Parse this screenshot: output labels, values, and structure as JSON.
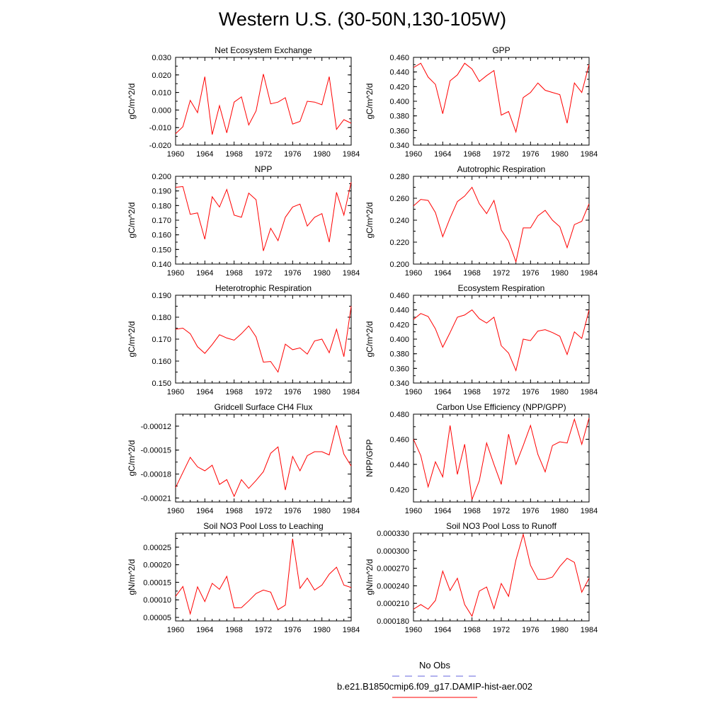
{
  "figure": {
    "title": "Western U.S. (30-50N,130-105W)",
    "legend": {
      "obs_label": "No Obs",
      "obs_color": "#6666dd",
      "model_label": "b.e21.B1850cmip6.f09_g17.DAMIP-hist-aer.002",
      "model_color": "#ff0000"
    },
    "line_color": "#ff0000"
  },
  "chart_data": [
    {
      "type": "line",
      "title": "Net Ecosystem Exchange",
      "ylabel": "gC/m^2/d",
      "xlim": [
        1960,
        1984
      ],
      "xticks": [
        "1960",
        "1964",
        "1968",
        "1972",
        "1976",
        "1980",
        "1984"
      ],
      "ylim": [
        -0.02,
        0.03
      ],
      "yticks": [
        "-0.020",
        "-0.010",
        "0.000",
        "0.010",
        "0.020",
        "0.030"
      ],
      "ytick_values": [
        -0.02,
        -0.01,
        0.0,
        0.01,
        0.02,
        0.03
      ],
      "series": [
        {
          "x": [
            1960,
            1961,
            1962,
            1963,
            1964,
            1965,
            1966,
            1967,
            1968,
            1969,
            1970,
            1971,
            1972,
            1973,
            1974,
            1975,
            1976,
            1977,
            1978,
            1979,
            1980,
            1981,
            1982,
            1983,
            1984
          ],
          "values": [
            -0.0135,
            -0.0095,
            0.0055,
            -0.0015,
            0.019,
            -0.014,
            0.0025,
            -0.013,
            0.0045,
            0.0075,
            -0.0085,
            -0.0005,
            0.0205,
            0.0035,
            0.0045,
            0.007,
            -0.008,
            -0.0065,
            0.005,
            0.0045,
            0.003,
            0.019,
            -0.011,
            -0.0055,
            -0.0075
          ]
        }
      ]
    },
    {
      "type": "line",
      "title": "GPP",
      "ylabel": "gC/m^2/d",
      "xlim": [
        1960,
        1984
      ],
      "xticks": [
        "1960",
        "1964",
        "1968",
        "1972",
        "1976",
        "1980",
        "1984"
      ],
      "ylim": [
        0.34,
        0.46
      ],
      "yticks": [
        "0.340",
        "0.360",
        "0.380",
        "0.400",
        "0.420",
        "0.440",
        "0.460"
      ],
      "ytick_values": [
        0.34,
        0.36,
        0.38,
        0.4,
        0.42,
        0.44,
        0.46
      ],
      "series": [
        {
          "x": [
            1960,
            1961,
            1962,
            1963,
            1964,
            1965,
            1966,
            1967,
            1968,
            1969,
            1970,
            1971,
            1972,
            1973,
            1974,
            1975,
            1976,
            1977,
            1978,
            1979,
            1980,
            1981,
            1982,
            1983,
            1984
          ],
          "values": [
            0.446,
            0.452,
            0.433,
            0.423,
            0.383,
            0.428,
            0.436,
            0.452,
            0.444,
            0.427,
            0.435,
            0.442,
            0.381,
            0.386,
            0.358,
            0.405,
            0.412,
            0.425,
            0.415,
            0.412,
            0.409,
            0.37,
            0.425,
            0.412,
            0.45
          ]
        }
      ]
    },
    {
      "type": "line",
      "title": "NPP",
      "ylabel": "gC/m^2/d",
      "xlim": [
        1960,
        1984
      ],
      "xticks": [
        "1960",
        "1964",
        "1968",
        "1972",
        "1976",
        "1980",
        "1984"
      ],
      "ylim": [
        0.14,
        0.2
      ],
      "yticks": [
        "0.140",
        "0.150",
        "0.160",
        "0.170",
        "0.180",
        "0.190",
        "0.200"
      ],
      "ytick_values": [
        0.14,
        0.15,
        0.16,
        0.17,
        0.18,
        0.19,
        0.2
      ],
      "series": [
        {
          "x": [
            1960,
            1961,
            1962,
            1963,
            1964,
            1965,
            1966,
            1967,
            1968,
            1969,
            1970,
            1971,
            1972,
            1973,
            1974,
            1975,
            1976,
            1977,
            1978,
            1979,
            1980,
            1981,
            1982,
            1983,
            1984
          ],
          "values": [
            0.1925,
            0.193,
            0.174,
            0.175,
            0.157,
            0.186,
            0.179,
            0.191,
            0.1735,
            0.172,
            0.1885,
            0.184,
            0.149,
            0.1645,
            0.156,
            0.172,
            0.179,
            0.181,
            0.166,
            0.172,
            0.1745,
            0.155,
            0.189,
            0.1735,
            0.196
          ]
        }
      ]
    },
    {
      "type": "line",
      "title": "Autotrophic Respiration",
      "ylabel": "gC/m^2/d",
      "xlim": [
        1960,
        1984
      ],
      "xticks": [
        "1960",
        "1964",
        "1968",
        "1972",
        "1976",
        "1980",
        "1984"
      ],
      "ylim": [
        0.2,
        0.28
      ],
      "yticks": [
        "0.200",
        "0.220",
        "0.240",
        "0.260",
        "0.280"
      ],
      "ytick_values": [
        0.2,
        0.22,
        0.24,
        0.26,
        0.28
      ],
      "series": [
        {
          "x": [
            1960,
            1961,
            1962,
            1963,
            1964,
            1965,
            1966,
            1967,
            1968,
            1969,
            1970,
            1971,
            1972,
            1973,
            1974,
            1975,
            1976,
            1977,
            1978,
            1979,
            1980,
            1981,
            1982,
            1983,
            1984
          ],
          "values": [
            0.253,
            0.259,
            0.258,
            0.247,
            0.225,
            0.242,
            0.257,
            0.262,
            0.27,
            0.255,
            0.246,
            0.258,
            0.231,
            0.221,
            0.202,
            0.233,
            0.233,
            0.244,
            0.249,
            0.24,
            0.234,
            0.215,
            0.236,
            0.239,
            0.255
          ]
        }
      ]
    },
    {
      "type": "line",
      "title": "Heterotrophic Respiration",
      "ylabel": "gC/m^2/d",
      "xlim": [
        1960,
        1984
      ],
      "xticks": [
        "1960",
        "1964",
        "1968",
        "1972",
        "1976",
        "1980",
        "1984"
      ],
      "ylim": [
        0.15,
        0.19
      ],
      "yticks": [
        "0.150",
        "0.160",
        "0.170",
        "0.180",
        "0.190"
      ],
      "ytick_values": [
        0.15,
        0.16,
        0.17,
        0.18,
        0.19
      ],
      "series": [
        {
          "x": [
            1960,
            1961,
            1962,
            1963,
            1964,
            1965,
            1966,
            1967,
            1968,
            1969,
            1970,
            1971,
            1972,
            1973,
            1974,
            1975,
            1976,
            1977,
            1978,
            1979,
            1980,
            1981,
            1982,
            1983,
            1984
          ],
          "values": [
            0.1745,
            0.175,
            0.1725,
            0.1665,
            0.1635,
            0.1675,
            0.172,
            0.1705,
            0.1695,
            0.1725,
            0.176,
            0.171,
            0.1595,
            0.1598,
            0.155,
            0.1677,
            0.1652,
            0.166,
            0.1632,
            0.1692,
            0.17,
            0.1638,
            0.1745,
            0.162,
            0.185
          ]
        }
      ]
    },
    {
      "type": "line",
      "title": "Ecosystem Respiration",
      "ylabel": "gC/m^2/d",
      "xlim": [
        1960,
        1984
      ],
      "xticks": [
        "1960",
        "1964",
        "1968",
        "1972",
        "1976",
        "1980",
        "1984"
      ],
      "ylim": [
        0.34,
        0.46
      ],
      "yticks": [
        "0.340",
        "0.360",
        "0.380",
        "0.400",
        "0.420",
        "0.440",
        "0.460"
      ],
      "ytick_values": [
        0.34,
        0.36,
        0.38,
        0.4,
        0.42,
        0.44,
        0.46
      ],
      "series": [
        {
          "x": [
            1960,
            1961,
            1962,
            1963,
            1964,
            1965,
            1966,
            1967,
            1968,
            1969,
            1970,
            1971,
            1972,
            1973,
            1974,
            1975,
            1976,
            1977,
            1978,
            1979,
            1980,
            1981,
            1982,
            1983,
            1984
          ],
          "values": [
            0.427,
            0.435,
            0.431,
            0.414,
            0.389,
            0.409,
            0.43,
            0.433,
            0.44,
            0.428,
            0.422,
            0.43,
            0.391,
            0.381,
            0.357,
            0.4,
            0.398,
            0.411,
            0.413,
            0.409,
            0.404,
            0.379,
            0.41,
            0.401,
            0.44
          ]
        }
      ]
    },
    {
      "type": "line",
      "title": "Gridcell Surface CH4 Flux",
      "ylabel": "gC/m^2/d",
      "xlim": [
        1960,
        1984
      ],
      "xticks": [
        "1960",
        "1964",
        "1968",
        "1972",
        "1976",
        "1980",
        "1984"
      ],
      "ylim": [
        -0.000215,
        -0.000105
      ],
      "yticks": [
        "-0.00021",
        "-0.00018",
        "-0.00015",
        "-0.00012"
      ],
      "ytick_values": [
        -0.00021,
        -0.00018,
        -0.00015,
        -0.00012
      ],
      "series": [
        {
          "x": [
            1960,
            1961,
            1962,
            1963,
            1964,
            1965,
            1966,
            1967,
            1968,
            1969,
            1970,
            1971,
            1972,
            1973,
            1974,
            1975,
            1976,
            1977,
            1978,
            1979,
            1980,
            1981,
            1982,
            1983,
            1984
          ],
          "values": [
            -0.000197,
            -0.000178,
            -0.000159,
            -0.000171,
            -0.000176,
            -0.000169,
            -0.000193,
            -0.000187,
            -0.000208,
            -0.000187,
            -0.000198,
            -0.000188,
            -0.000177,
            -0.000154,
            -0.000146,
            -0.0002,
            -0.000158,
            -0.000176,
            -0.000157,
            -0.000152,
            -0.000152,
            -0.000156,
            -0.000119,
            -0.000155,
            -0.00017
          ]
        }
      ]
    },
    {
      "type": "line",
      "title": "Carbon Use Efficiency (NPP/GPP)",
      "ylabel": "NPP/GPP",
      "xlim": [
        1960,
        1984
      ],
      "xticks": [
        "1960",
        "1964",
        "1968",
        "1972",
        "1976",
        "1980",
        "1984"
      ],
      "ylim": [
        0.41,
        0.48
      ],
      "yticks": [
        "0.420",
        "0.440",
        "0.460",
        "0.480"
      ],
      "ytick_values": [
        0.42,
        0.44,
        0.46,
        0.48
      ],
      "series": [
        {
          "x": [
            1960,
            1961,
            1962,
            1963,
            1964,
            1965,
            1966,
            1967,
            1968,
            1969,
            1970,
            1971,
            1972,
            1973,
            1974,
            1975,
            1976,
            1977,
            1978,
            1979,
            1980,
            1981,
            1982,
            1983,
            1984
          ],
          "values": [
            0.46,
            0.447,
            0.422,
            0.442,
            0.43,
            0.471,
            0.432,
            0.456,
            0.412,
            0.427,
            0.457,
            0.44,
            0.424,
            0.464,
            0.44,
            0.455,
            0.471,
            0.448,
            0.434,
            0.455,
            0.458,
            0.457,
            0.476,
            0.456,
            0.477
          ]
        }
      ]
    },
    {
      "type": "line",
      "title": "Soil NO3 Pool Loss to Leaching",
      "ylabel": "gN/m^2/d",
      "xlim": [
        1960,
        1984
      ],
      "xticks": [
        "1960",
        "1964",
        "1968",
        "1972",
        "1976",
        "1980",
        "1984"
      ],
      "ylim": [
        4e-05,
        0.00029
      ],
      "yticks": [
        "0.00005",
        "0.00010",
        "0.00015",
        "0.00020",
        "0.00025"
      ],
      "ytick_values": [
        5e-05,
        0.0001,
        0.00015,
        0.0002,
        0.00025
      ],
      "series": [
        {
          "x": [
            1960,
            1961,
            1962,
            1963,
            1964,
            1965,
            1966,
            1967,
            1968,
            1969,
            1970,
            1971,
            1972,
            1973,
            1974,
            1975,
            1976,
            1977,
            1978,
            1979,
            1980,
            1981,
            1982,
            1983,
            1984
          ],
          "values": [
            0.00011,
            0.000138,
            6e-05,
            0.000137,
            9.5e-05,
            0.000147,
            0.00013,
            0.000167,
            7.7e-05,
            7.8e-05,
            9.7e-05,
            0.000118,
            0.000128,
            0.000122,
            7.2e-05,
            8.5e-05,
            0.000274,
            0.000133,
            0.000162,
            0.000128,
            0.000142,
            0.000173,
            0.000193,
            0.000142,
            0.000135
          ]
        }
      ]
    },
    {
      "type": "line",
      "title": "Soil NO3 Pool Loss to Runoff",
      "ylabel": "gN/m^2/d",
      "xlim": [
        1960,
        1984
      ],
      "xticks": [
        "1960",
        "1964",
        "1968",
        "1972",
        "1976",
        "1980",
        "1984"
      ],
      "ylim": [
        0.00018,
        0.00033
      ],
      "yticks": [
        "0.000180",
        "0.000210",
        "0.000240",
        "0.000270",
        "0.000300",
        "0.000330"
      ],
      "ytick_values": [
        0.00018,
        0.00021,
        0.00024,
        0.00027,
        0.0003,
        0.00033
      ],
      "series": [
        {
          "x": [
            1960,
            1961,
            1962,
            1963,
            1964,
            1965,
            1966,
            1967,
            1968,
            1969,
            1970,
            1971,
            1972,
            1973,
            1974,
            1975,
            1976,
            1977,
            1978,
            1979,
            1980,
            1981,
            1982,
            1983,
            1984
          ],
          "values": [
            0.0002,
            0.000208,
            0.0002,
            0.000215,
            0.000265,
            0.000232,
            0.000253,
            0.000208,
            0.000188,
            0.000231,
            0.000238,
            0.000201,
            0.000244,
            0.000222,
            0.000284,
            0.000328,
            0.000275,
            0.000251,
            0.000251,
            0.000255,
            0.000273,
            0.000287,
            0.00028,
            0.000229,
            0.000253
          ]
        }
      ]
    }
  ]
}
